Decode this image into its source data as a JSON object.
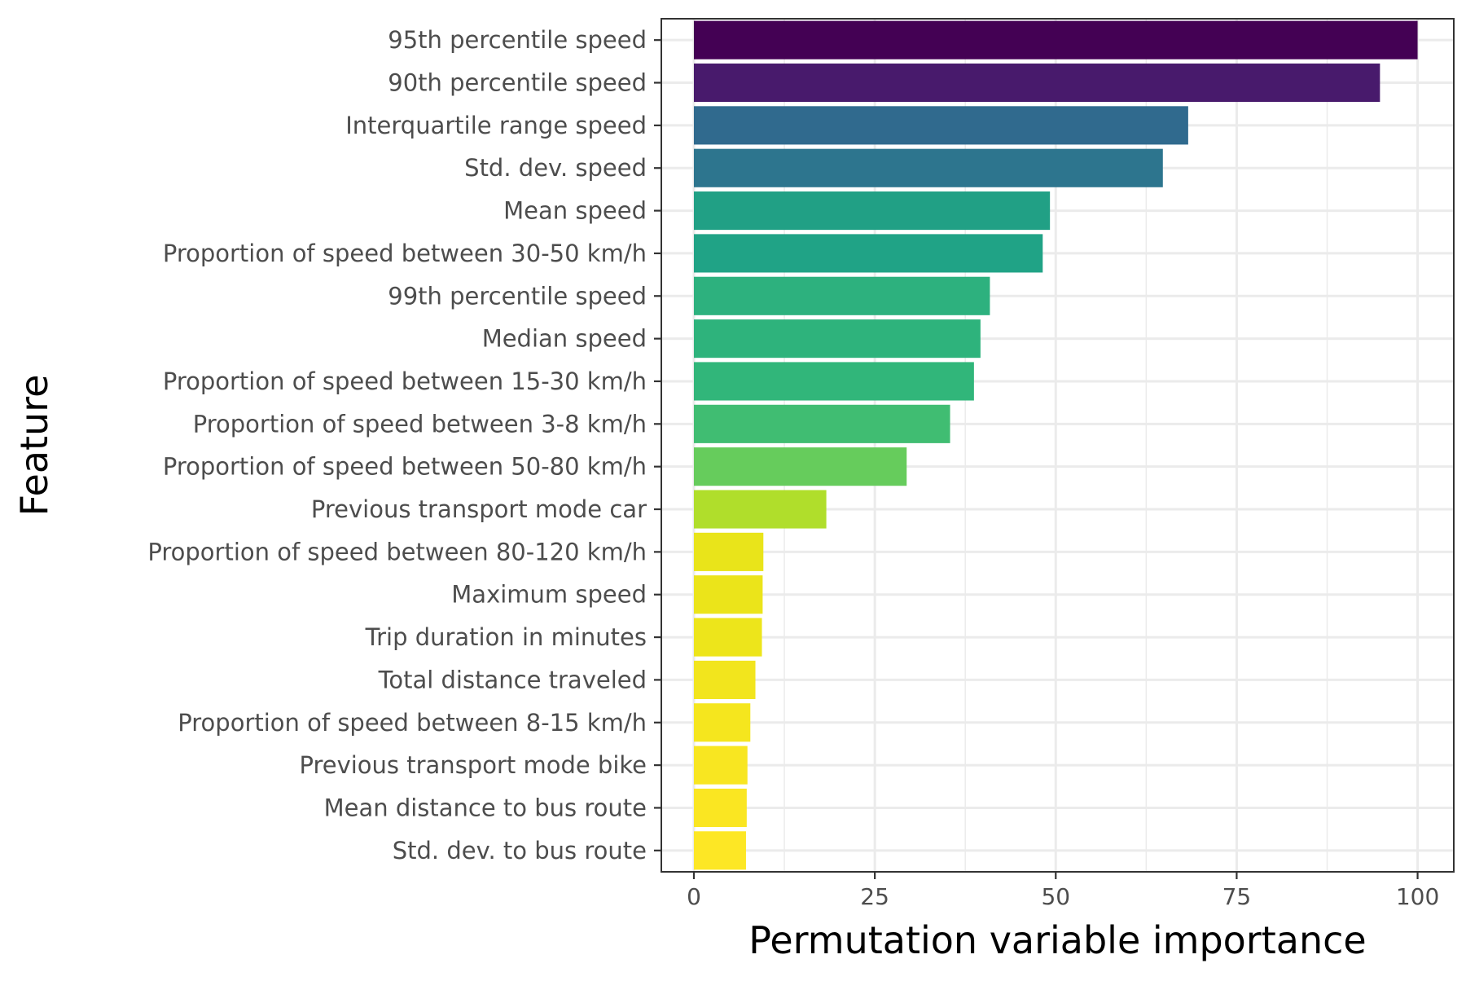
{
  "chart_data": {
    "type": "bar",
    "orientation": "horizontal",
    "xlabel": "Permutation variable importance",
    "ylabel": "Feature",
    "xlim": [
      -4.5,
      105
    ],
    "xticks": [
      0,
      25,
      50,
      75,
      100
    ],
    "grid": true,
    "categories": [
      "95th percentile speed",
      "90th percentile speed",
      "Interquartile range speed",
      "Std. dev. speed",
      "Mean speed",
      "Proportion of speed between 30-50 km/h",
      "99th percentile speed",
      "Median speed",
      "Proportion of speed between 15-30 km/h",
      "Proportion of speed between 3-8 km/h",
      "Proportion of speed between 50-80 km/h",
      "Previous transport mode car",
      "Proportion of speed between 80-120 km/h",
      "Maximum speed",
      "Trip duration in minutes",
      "Total distance traveled",
      "Proportion of speed between 8-15 km/h",
      "Previous transport mode bike",
      "Mean distance to bus route",
      "Std. dev. to bus route"
    ],
    "values": [
      100,
      94.8,
      68.3,
      64.8,
      49.2,
      48.2,
      40.9,
      39.6,
      38.7,
      35.4,
      29.4,
      18.3,
      9.6,
      9.5,
      9.4,
      8.5,
      7.8,
      7.4,
      7.3,
      7.2
    ],
    "colors": [
      "#440154",
      "#481A6C",
      "#306A8E",
      "#2D758E",
      "#21A085",
      "#20A386",
      "#2DB17E",
      "#2EB37C",
      "#31B67A",
      "#40BD72",
      "#66CC5C",
      "#B0DE2B",
      "#E9E41A",
      "#EBE41A",
      "#EDE51B",
      "#F2E51D",
      "#F5E61E",
      "#F8E621",
      "#FAE622",
      "#FDE725"
    ],
    "styles": {
      "background": "#ffffff",
      "gridline": "#ebebeb",
      "panel_border": "#333333",
      "tick_color": "#333333"
    }
  }
}
